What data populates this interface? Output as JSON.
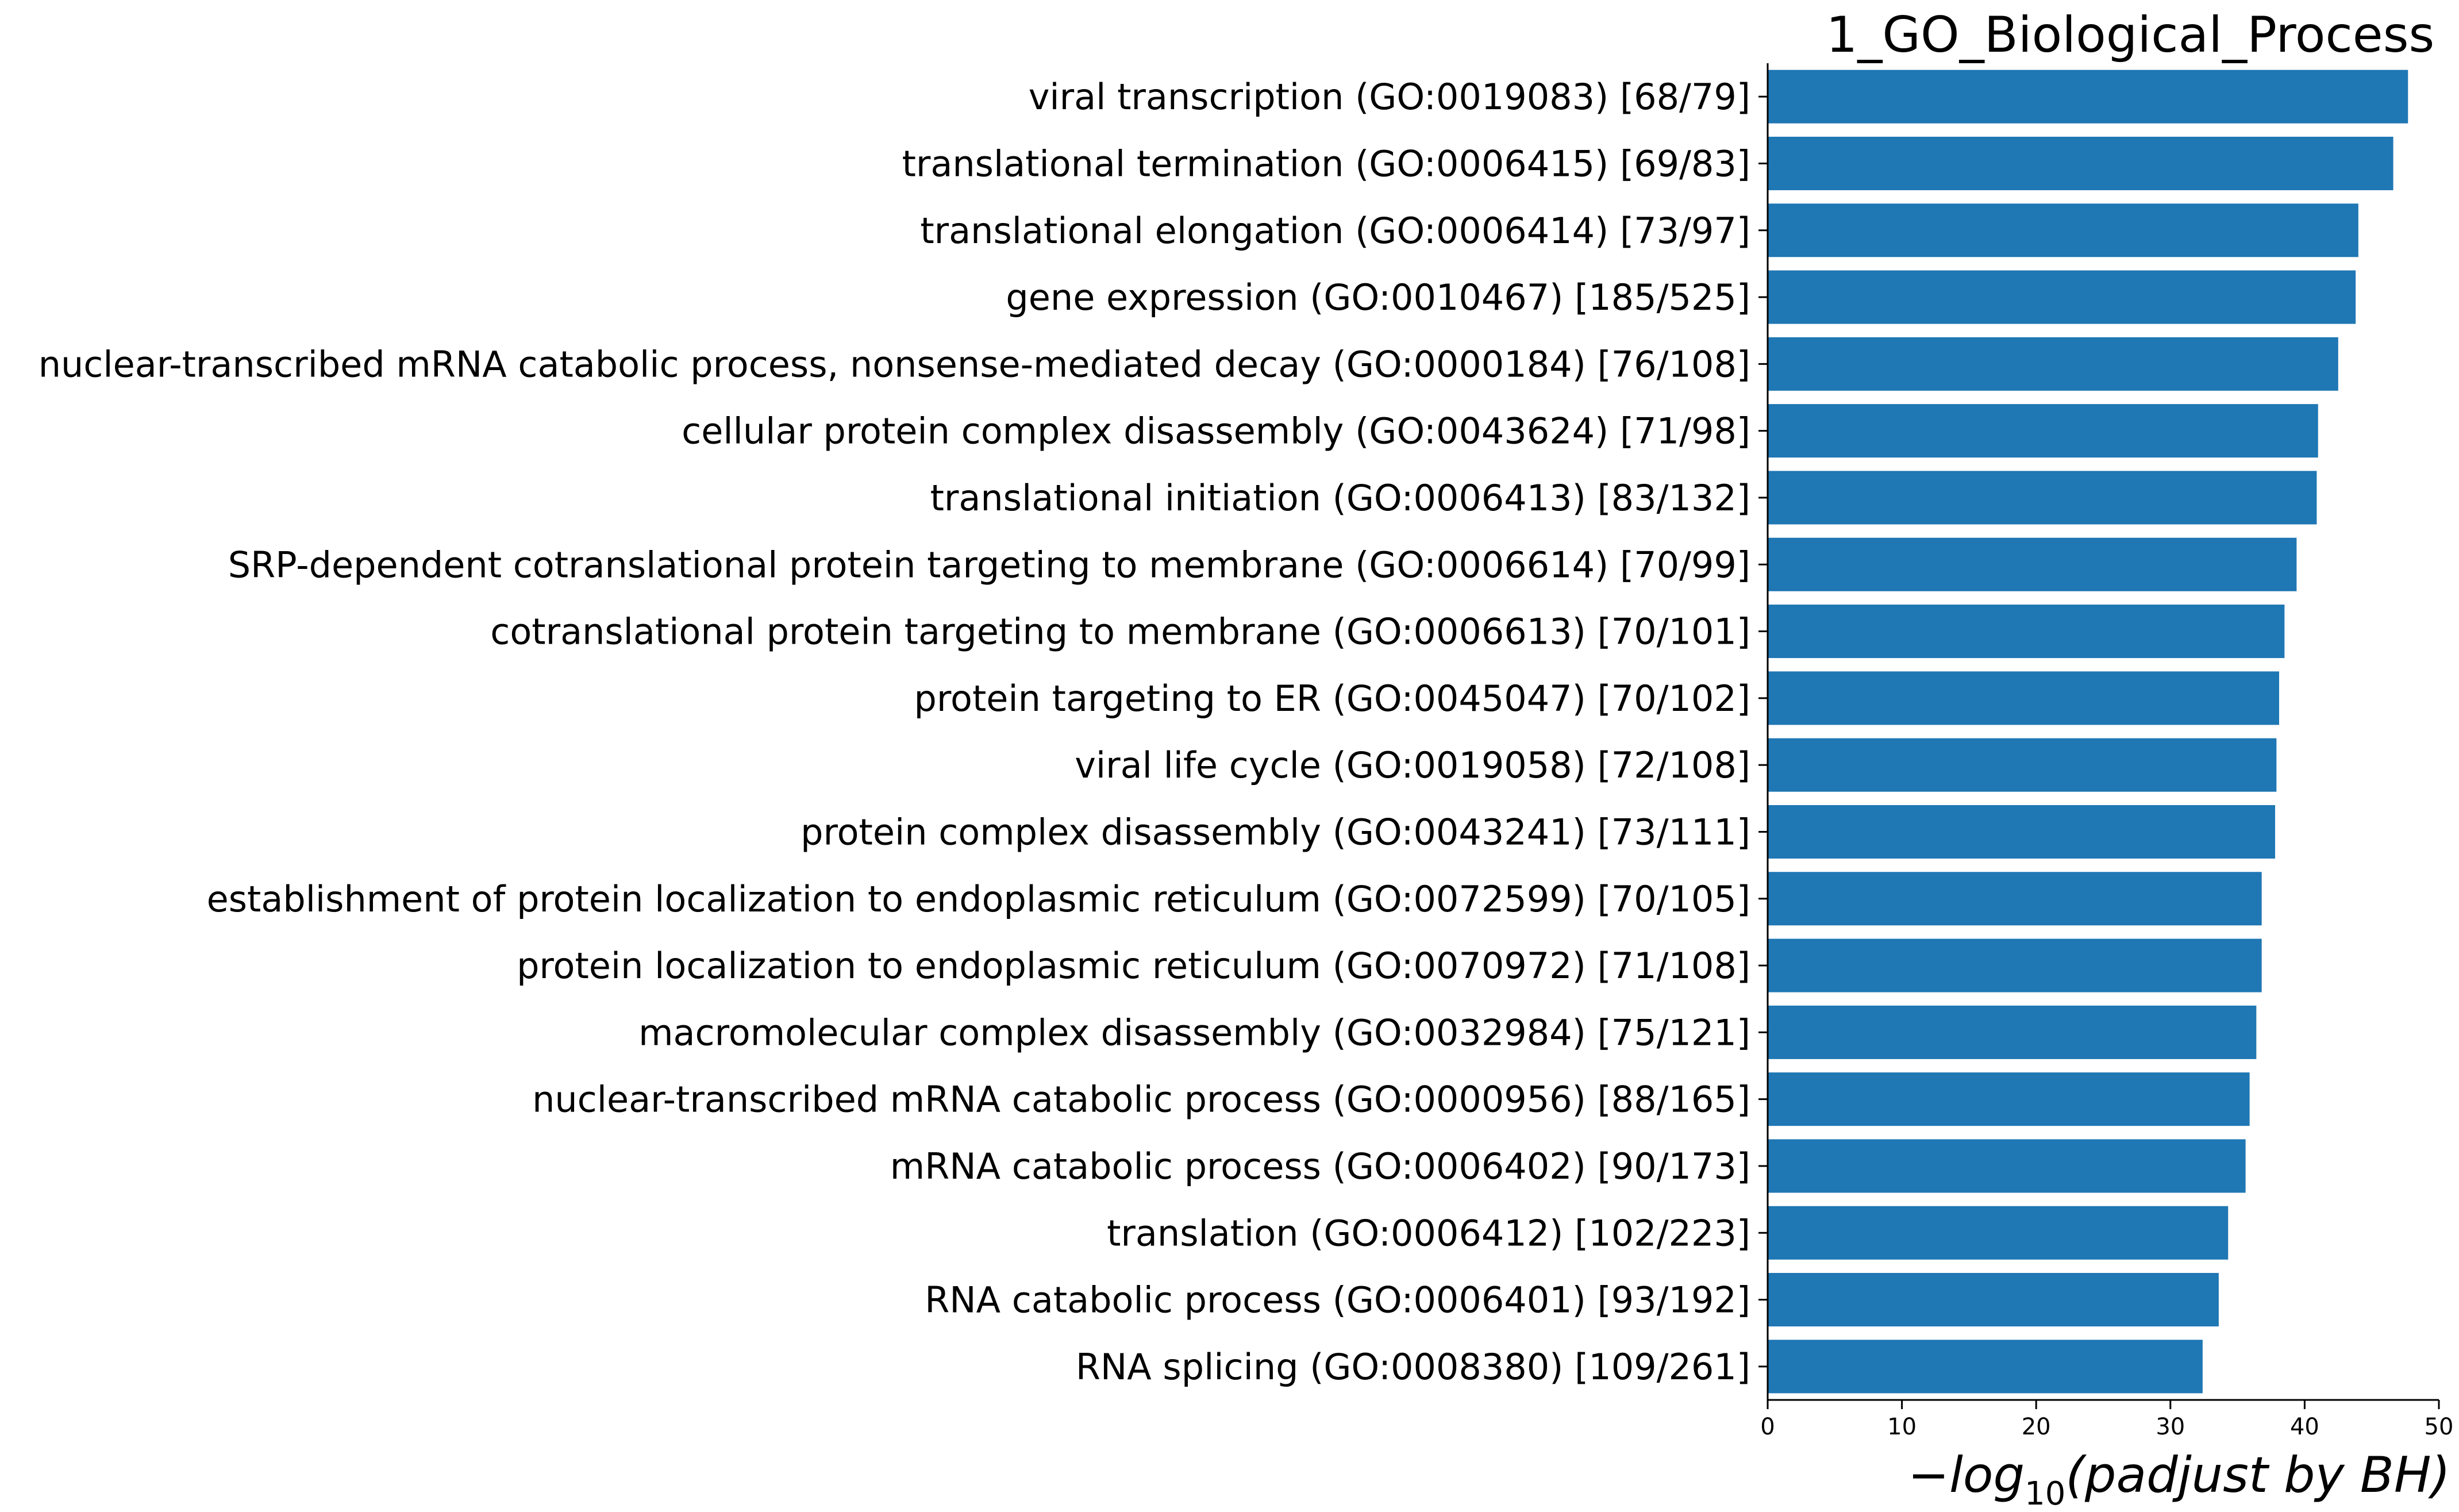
{
  "chart_data": {
    "type": "bar",
    "orientation": "horizontal",
    "title": "1_GO_Biological_Process",
    "xlabel": {
      "prefix": "−",
      "base": "log",
      "subscript": "10",
      "rest": "(padjust by BH)"
    },
    "ylabel": "",
    "xlim": [
      0,
      50
    ],
    "xticks": [
      0,
      10,
      20,
      30,
      40,
      50
    ],
    "grid": false,
    "bar_color": "#1f77b4",
    "categories": [
      "viral transcription (GO:0019083) [68/79]",
      "translational termination (GO:0006415) [69/83]",
      "translational elongation (GO:0006414) [73/97]",
      "gene expression (GO:0010467) [185/525]",
      "nuclear-transcribed mRNA catabolic process, nonsense-mediated decay (GO:0000184) [76/108]",
      "cellular protein complex disassembly (GO:0043624) [71/98]",
      "translational initiation (GO:0006413) [83/132]",
      "SRP-dependent cotranslational protein targeting to membrane (GO:0006614) [70/99]",
      "cotranslational protein targeting to membrane (GO:0006613) [70/101]",
      "protein targeting to ER (GO:0045047) [70/102]",
      "viral life cycle (GO:0019058) [72/108]",
      "protein complex disassembly (GO:0043241) [73/111]",
      "establishment of protein localization to endoplasmic reticulum (GO:0072599) [70/105]",
      "protein localization to endoplasmic reticulum (GO:0070972) [71/108]",
      "macromolecular complex disassembly (GO:0032984) [75/121]",
      "nuclear-transcribed mRNA catabolic process (GO:0000956) [88/165]",
      "mRNA catabolic process (GO:0006402) [90/173]",
      "translation (GO:0006412) [102/223]",
      "RNA catabolic process (GO:0006401) [93/192]",
      "RNA splicing (GO:0008380) [109/261]"
    ],
    "values": [
      47.7,
      46.6,
      44.0,
      43.8,
      42.5,
      41.0,
      40.9,
      39.4,
      38.5,
      38.1,
      37.9,
      37.8,
      36.8,
      36.8,
      36.4,
      35.9,
      35.6,
      34.3,
      33.6,
      32.4
    ]
  }
}
